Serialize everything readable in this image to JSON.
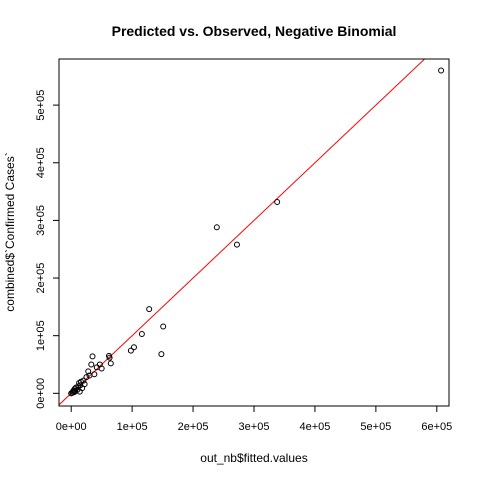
{
  "chart_data": {
    "type": "scatter",
    "title": "Predicted vs. Observed, Negative Binomial",
    "xlabel": "out_nb$fitted.values",
    "ylabel": "combined$`Confirmed Cases`",
    "xlim": [
      -20000,
      620000
    ],
    "ylim": [
      -22000,
      580000
    ],
    "x_ticks": [
      0,
      100000,
      200000,
      300000,
      400000,
      500000,
      600000
    ],
    "x_tick_labels": [
      "0e+00",
      "1e+05",
      "2e+05",
      "3e+05",
      "4e+05",
      "5e+05",
      "6e+05"
    ],
    "y_ticks": [
      0,
      100000,
      200000,
      300000,
      400000,
      500000
    ],
    "y_tick_labels": [
      "0e+00",
      "1e+05",
      "2e+05",
      "3e+05",
      "4e+05",
      "5e+05"
    ],
    "grid": false,
    "reference_line": {
      "slope": 1,
      "intercept": 0,
      "color": "#ff0000"
    },
    "point_color": "#000000",
    "points": [
      [
        0,
        0
      ],
      [
        2000,
        1000
      ],
      [
        3000,
        3000
      ],
      [
        4000,
        5000
      ],
      [
        5000,
        2000
      ],
      [
        6000,
        8000
      ],
      [
        7000,
        4000
      ],
      [
        8000,
        10000
      ],
      [
        10000,
        6000
      ],
      [
        12000,
        12000
      ],
      [
        13000,
        18000
      ],
      [
        14000,
        3000
      ],
      [
        15000,
        14000
      ],
      [
        16000,
        20000
      ],
      [
        18000,
        9000
      ],
      [
        20000,
        22000
      ],
      [
        22000,
        16000
      ],
      [
        25000,
        28000
      ],
      [
        28000,
        38000
      ],
      [
        30000,
        31000
      ],
      [
        33000,
        50000
      ],
      [
        35000,
        64000
      ],
      [
        38000,
        33000
      ],
      [
        42000,
        45000
      ],
      [
        47000,
        50000
      ],
      [
        50000,
        43000
      ],
      [
        62000,
        65000
      ],
      [
        63000,
        62000
      ],
      [
        65000,
        52000
      ],
      [
        98000,
        74000
      ],
      [
        103000,
        80000
      ],
      [
        116000,
        103000
      ],
      [
        128000,
        146000
      ],
      [
        148000,
        68000
      ],
      [
        151000,
        116000
      ],
      [
        239000,
        288000
      ],
      [
        272000,
        258000
      ],
      [
        338000,
        332000
      ],
      [
        607000,
        560000
      ]
    ]
  }
}
